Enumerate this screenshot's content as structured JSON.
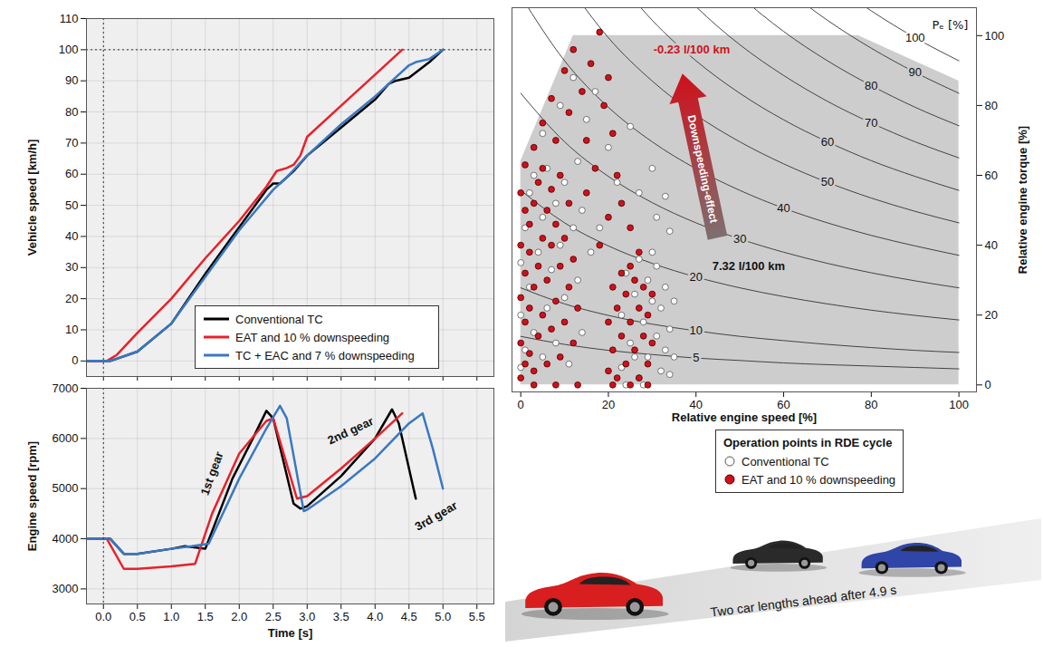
{
  "chart_data": [
    {
      "type": "line",
      "ylabel": "Vehicle speed [km/h]",
      "xlim": [
        -0.25,
        5.75
      ],
      "xticks": [
        0,
        0.5,
        1,
        1.5,
        2,
        2.5,
        3,
        3.5,
        4,
        4.5,
        5,
        5.5
      ],
      "ylim": [
        -5,
        110
      ],
      "yticks": [
        0,
        10,
        20,
        30,
        40,
        50,
        60,
        70,
        80,
        90,
        100,
        110
      ],
      "grid": true,
      "tick_labels": "y",
      "legend": "bottom-right",
      "reference_lines": {
        "x": [
          0
        ],
        "y": [
          100
        ]
      },
      "series": [
        {
          "name": "Conventional TC",
          "color": "#000000",
          "x": [
            -0.25,
            0.1,
            0.5,
            1.0,
            1.5,
            2.0,
            2.4,
            2.5,
            2.6,
            2.8,
            3.0,
            3.5,
            4.0,
            4.2,
            4.3,
            4.5,
            4.8,
            5.0
          ],
          "values": [
            0,
            0,
            3,
            12,
            28,
            43,
            55,
            57,
            57,
            61,
            66,
            75,
            84,
            89,
            90,
            91,
            96,
            100
          ]
        },
        {
          "name": "EAT and 10 % downspeeding",
          "color": "#e8212a",
          "x": [
            -0.25,
            0.05,
            0.2,
            0.5,
            1.0,
            1.5,
            2.0,
            2.4,
            2.55,
            2.7,
            2.8,
            2.9,
            3.0,
            3.5,
            4.0,
            4.4
          ],
          "values": [
            0,
            0,
            2,
            9,
            20,
            33,
            45,
            56,
            61,
            62,
            63,
            66,
            72,
            82,
            92,
            100
          ]
        },
        {
          "name": "TC + EAC and 7 % downspeeding",
          "color": "#3a78c2",
          "x": [
            -0.25,
            0.1,
            0.5,
            1.0,
            1.5,
            2.0,
            2.5,
            2.7,
            3.0,
            3.5,
            4.0,
            4.5,
            4.6,
            4.8,
            5.0
          ],
          "values": [
            0,
            0,
            3,
            12,
            27,
            42,
            55,
            59,
            66,
            76,
            85,
            95,
            96,
            97,
            100
          ]
        }
      ]
    },
    {
      "type": "line",
      "xlabel": "Time [s]",
      "ylabel": "Engine speed [rpm]",
      "xlim": [
        -0.25,
        5.75
      ],
      "xticks": [
        {
          "value": 0,
          "label": "0.0"
        },
        0.5,
        {
          "value": 1,
          "label": "1.0"
        },
        1.5,
        {
          "value": 2,
          "label": "2.0"
        },
        2.5,
        {
          "value": 3,
          "label": "3.0"
        },
        3.5,
        {
          "value": 4,
          "label": "4.0"
        },
        4.5,
        {
          "value": 5,
          "label": "5.0"
        },
        5.5
      ],
      "ylim": [
        2700,
        7000
      ],
      "yticks": [
        3000,
        4000,
        5000,
        6000,
        7000
      ],
      "grid": true,
      "reference_lines": {
        "x": [
          0
        ]
      },
      "annotations": [
        {
          "text": "1st gear",
          "x": 1.6,
          "y": 5300
        },
        {
          "text": "2nd gear",
          "x": 3.64,
          "y": 6150
        },
        {
          "text": "3rd gear",
          "x": 4.9,
          "y": 4450
        }
      ],
      "series": [
        {
          "name": "Conventional TC",
          "color": "#000000",
          "x": [
            -0.25,
            0.1,
            0.3,
            0.5,
            1.0,
            1.2,
            1.5,
            1.9,
            2.2,
            2.4,
            2.5,
            2.8,
            2.9,
            3.0,
            3.5,
            4.0,
            4.25,
            4.35,
            4.6
          ],
          "values": [
            4000,
            4000,
            3700,
            3700,
            3800,
            3850,
            3800,
            5200,
            6000,
            6550,
            6400,
            4700,
            4600,
            4650,
            5250,
            6000,
            6580,
            6300,
            4800
          ]
        },
        {
          "name": "EAT and 10 % downspeeding",
          "color": "#e8212a",
          "x": [
            -0.25,
            0.05,
            0.3,
            0.5,
            1.0,
            1.35,
            1.6,
            2.0,
            2.4,
            2.5,
            2.85,
            3.0,
            3.5,
            4.0,
            4.4
          ],
          "values": [
            4000,
            4000,
            3400,
            3400,
            3450,
            3500,
            4500,
            5700,
            6350,
            6400,
            4800,
            4850,
            5400,
            6000,
            6500
          ]
        },
        {
          "name": "TC + EAC and 7 % downspeeding",
          "color": "#3a78c2",
          "x": [
            -0.25,
            0.1,
            0.3,
            0.5,
            1.0,
            1.3,
            1.55,
            2.0,
            2.4,
            2.6,
            2.7,
            2.95,
            3.0,
            3.5,
            4.0,
            4.5,
            4.7,
            4.85,
            5.0
          ],
          "values": [
            4000,
            4000,
            3700,
            3700,
            3800,
            3850,
            3900,
            5200,
            6200,
            6650,
            6400,
            4550,
            4580,
            5050,
            5600,
            6300,
            6500,
            5800,
            5000
          ]
        }
      ]
    },
    {
      "type": "scatter",
      "xlabel": "Relative engine speed [%]",
      "ylabel": "Relative engine torque [%]",
      "xlim": [
        -2,
        104
      ],
      "xticks": [
        0,
        20,
        40,
        60,
        80,
        100
      ],
      "ylim": [
        -2,
        108
      ],
      "yticks": [
        0,
        20,
        40,
        60,
        80,
        100
      ],
      "grid": false,
      "legend": "bottom",
      "legend_title": "Operation points in RDE cycle",
      "full_load": {
        "x": [
          0,
          12,
          77,
          100
        ],
        "y": [
          64,
          100,
          100,
          87
        ]
      },
      "iso_power": {
        "label": "Pₑ [%]",
        "label_x": 98,
        "label_y": 103,
        "curves": [
          {
            "value": 5,
            "label_x": 40,
            "x": [
              0,
              10,
              20,
              30,
              40,
              50,
              60,
              70,
              80,
              90,
              100
            ],
            "values": [
              13.9,
              11.6,
              9.9,
              8.7,
              7.7,
              7.0,
              6.3,
              5.8,
              5.4,
              5.0,
              4.6
            ]
          },
          {
            "value": 10,
            "label_x": 40,
            "x": [
              0,
              10,
              20,
              30,
              40,
              50,
              60,
              70,
              80,
              90,
              100
            ],
            "values": [
              27.8,
              23.2,
              19.9,
              17.4,
              15.5,
              13.9,
              12.7,
              11.6,
              10.7,
              9.9,
              9.3
            ]
          },
          {
            "value": 20,
            "label_x": 40,
            "x": [
              0,
              10,
              20,
              30,
              40,
              50,
              60,
              70,
              80,
              90,
              100
            ],
            "values": [
              55.7,
              46.4,
              39.8,
              34.8,
              30.9,
              27.8,
              25.3,
              23.2,
              21.4,
              19.9,
              18.6
            ]
          },
          {
            "value": 30,
            "label_x": 50,
            "x": [
              0,
              10,
              20,
              30,
              40,
              50,
              60,
              70,
              80,
              90,
              100
            ],
            "values": [
              83.5,
              69.6,
              59.7,
              52.2,
              46.4,
              41.8,
              38.0,
              34.8,
              32.1,
              29.8,
              27.8
            ]
          },
          {
            "value": 40,
            "label_x": 60,
            "x": [
              0,
              10,
              20,
              30,
              40,
              50,
              60,
              70,
              80,
              90,
              100
            ],
            "values": [
              111.4,
              92.8,
              79.5,
              69.6,
              61.9,
              55.7,
              50.6,
              46.4,
              42.8,
              39.8,
              37.1
            ]
          },
          {
            "value": 50,
            "label_x": 70,
            "x": [
              10,
              20,
              30,
              40,
              50,
              60,
              70,
              80,
              90,
              100
            ],
            "values": [
              116.0,
              99.4,
              87.0,
              77.3,
              69.6,
              63.3,
              58.0,
              53.5,
              49.7,
              46.4
            ]
          },
          {
            "value": 60,
            "label_x": 70,
            "x": [
              20,
              30,
              40,
              50,
              60,
              70,
              80,
              90,
              100
            ],
            "values": [
              119.3,
              104.4,
              92.8,
              83.5,
              75.9,
              69.6,
              64.2,
              59.7,
              55.7
            ]
          },
          {
            "value": 70,
            "label_x": 80,
            "x": [
              30,
              40,
              50,
              60,
              70,
              80,
              90,
              100
            ],
            "values": [
              121.8,
              108.3,
              97.4,
              88.6,
              81.2,
              75.0,
              69.6,
              65.0
            ]
          },
          {
            "value": 80,
            "label_x": 80,
            "x": [
              40,
              50,
              60,
              70,
              80,
              90,
              100
            ],
            "values": [
              123.7,
              111.4,
              101.2,
              92.8,
              85.7,
              79.5,
              74.2
            ]
          },
          {
            "value": 90,
            "label_x": 90,
            "x": [
              50,
              60,
              70,
              80,
              90,
              100
            ],
            "values": [
              125.3,
              113.9,
              104.4,
              96.4,
              89.5,
              83.5
            ]
          },
          {
            "value": 100,
            "label_x": 90,
            "x": [
              60,
              70,
              80,
              90,
              100
            ],
            "values": [
              126.5,
              116.0,
              107.1,
              99.4,
              92.8
            ]
          }
        ]
      },
      "annotations": [
        {
          "text": "7.32 l/100 km",
          "x": 52,
          "y": 34,
          "color": "#111111"
        },
        {
          "text": "-0.23 l/100 km",
          "x": 39,
          "y": 96,
          "color": "#d0101b"
        }
      ],
      "arrow": {
        "text": "Downspeeding-effect",
        "x": [
          45,
          37
        ],
        "y": [
          42,
          89
        ],
        "color": "#d0101b"
      },
      "series": [
        {
          "name": "Conventional TC",
          "color": "#555555",
          "marker": "circle-open",
          "x": [
            0,
            0,
            0,
            1,
            1,
            2,
            2,
            3,
            3,
            4,
            5,
            5,
            6,
            6,
            7,
            8,
            8,
            9,
            10,
            10,
            11,
            12,
            13,
            14,
            14,
            13,
            5,
            9,
            12,
            15,
            17,
            20,
            22,
            25,
            27,
            30,
            31,
            33,
            34,
            18,
            16,
            23,
            23,
            24,
            25,
            26,
            27,
            27,
            28,
            29,
            29,
            30,
            31,
            31,
            32,
            32,
            33,
            33,
            34,
            34,
            35,
            35,
            30,
            24,
            28,
            26
          ],
          "values": [
            5,
            20,
            35,
            10,
            45,
            28,
            55,
            15,
            60,
            38,
            8,
            48,
            22,
            62,
            33,
            12,
            52,
            40,
            25,
            58,
            6,
            45,
            30,
            15,
            50,
            64,
            72,
            80,
            88,
            76,
            84,
            68,
            58,
            74,
            55,
            62,
            48,
            54,
            44,
            45,
            38,
            5,
            20,
            32,
            12,
            26,
            2,
            36,
            18,
            8,
            30,
            24,
            14,
            34,
            4,
            22,
            10,
            28,
            16,
            3,
            8,
            24,
            38,
            0,
            0,
            8
          ]
        },
        {
          "name": "EAT and 10 % downspeeding",
          "color": "#d0101b",
          "marker": "circle",
          "x": [
            0,
            0,
            0,
            0,
            0,
            1,
            1,
            1,
            1,
            1,
            2,
            2,
            2,
            2,
            3,
            3,
            3,
            4,
            4,
            4,
            5,
            5,
            5,
            6,
            6,
            6,
            7,
            7,
            7,
            8,
            8,
            9,
            9,
            9,
            10,
            10,
            11,
            11,
            12,
            12,
            13,
            13,
            3,
            8,
            3,
            5,
            7,
            8,
            10,
            11,
            12,
            14,
            15,
            16,
            18,
            19,
            20,
            17,
            21,
            22,
            15,
            18,
            20,
            23,
            25,
            27,
            20,
            20,
            21,
            21,
            22,
            22,
            23,
            23,
            24,
            24,
            25,
            25,
            26,
            26,
            27,
            27,
            28,
            28,
            29,
            29,
            30,
            30,
            21,
            25,
            29
          ],
          "values": [
            2,
            12,
            25,
            40,
            55,
            6,
            18,
            32,
            50,
            63,
            9,
            22,
            38,
            46,
            4,
            28,
            52,
            14,
            34,
            58,
            20,
            42,
            62,
            6,
            30,
            50,
            16,
            40,
            56,
            24,
            46,
            8,
            34,
            60,
            18,
            42,
            28,
            52,
            12,
            36,
            22,
            0,
            0,
            0,
            68,
            75,
            82,
            70,
            90,
            78,
            96,
            84,
            70,
            92,
            101,
            80,
            88,
            62,
            72,
            60,
            55,
            40,
            48,
            52,
            45,
            38,
            4,
            18,
            28,
            10,
            22,
            2,
            14,
            32,
            6,
            26,
            18,
            34,
            10,
            30,
            2,
            22,
            14,
            28,
            6,
            20,
            12,
            26,
            0,
            0,
            0
          ]
        }
      ]
    }
  ],
  "illustration": {
    "caption": "Two car lengths ahead after 4.9 s"
  }
}
